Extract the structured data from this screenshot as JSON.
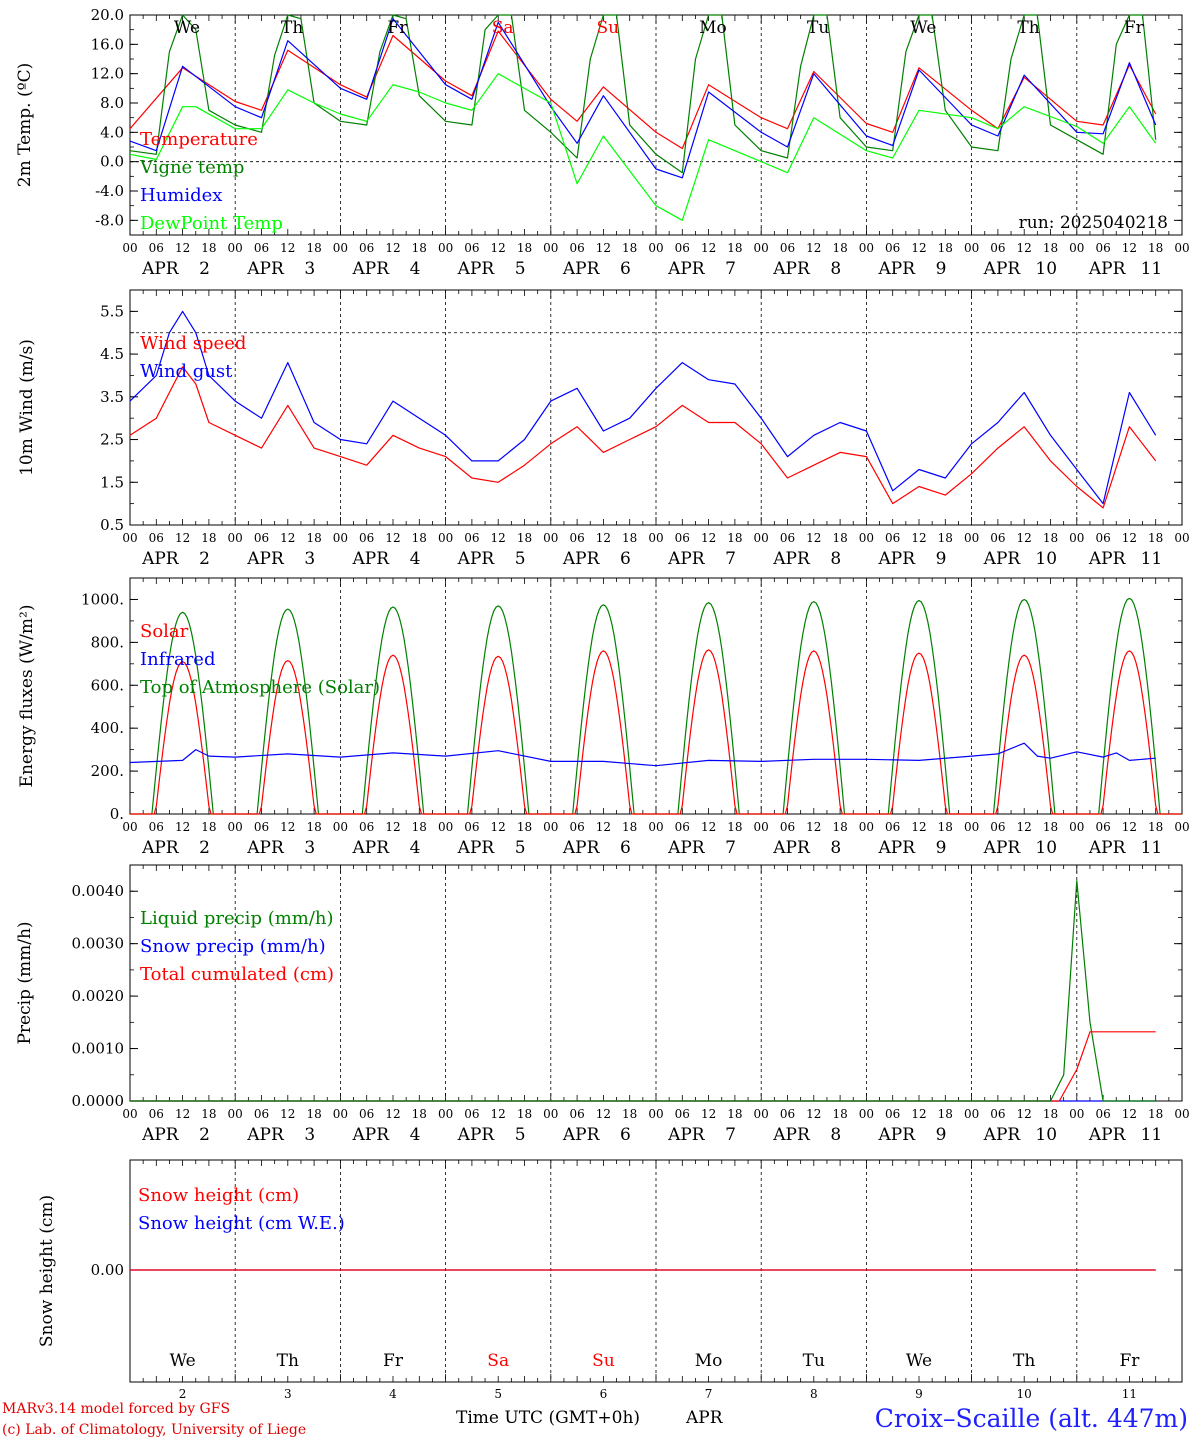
{
  "chart_data": [
    {
      "type": "line",
      "ylabel": "2m Temp. (ºC)",
      "ylim": [
        -10,
        20
      ],
      "y_ticks": [
        "20.0",
        "16.0",
        "12.0",
        "8.0",
        "4.0",
        "0.0",
        "-4.0",
        "-8.0"
      ],
      "reference_line": 0,
      "grid": "vertical dashed day separators",
      "run_label": "run: 2025040218",
      "legend_placement": "left",
      "series": [
        {
          "name": "Temperature",
          "color": "#ff0000",
          "hours": [
            0,
            12,
            24,
            30,
            36,
            48,
            54,
            60,
            72,
            78,
            84,
            96,
            102,
            108,
            120,
            126,
            132,
            144,
            150,
            156,
            168,
            174,
            180,
            192,
            198,
            204,
            216,
            222,
            228,
            234
          ],
          "values": [
            4.5,
            12.8,
            8.2,
            7.0,
            15.2,
            10.5,
            8.8,
            17.2,
            11.0,
            9.0,
            17.8,
            8.5,
            5.5,
            10.2,
            4.0,
            1.8,
            10.5,
            6.0,
            4.5,
            12.3,
            5.2,
            4.0,
            12.8,
            7.0,
            4.5,
            11.5,
            5.5,
            5.0,
            13.2,
            6.5
          ]
        },
        {
          "name": "Vigne temp",
          "color": "#008000",
          "hours": [
            0,
            6,
            9,
            12,
            15,
            18,
            24,
            30,
            33,
            36,
            39,
            42,
            48,
            54,
            57,
            60,
            63,
            66,
            72,
            78,
            81,
            84,
            87,
            90,
            96,
            102,
            105,
            108,
            111,
            114,
            120,
            126,
            129,
            132,
            135,
            138,
            144,
            150,
            153,
            156,
            159,
            162,
            168,
            174,
            177,
            180,
            183,
            186,
            192,
            198,
            201,
            204,
            207,
            210,
            216,
            222,
            225,
            228,
            231,
            234
          ],
          "values": [
            1.5,
            1.0,
            15.0,
            20.0,
            18.0,
            7.0,
            5.0,
            4.0,
            14.5,
            20.0,
            19.5,
            8.0,
            5.5,
            5.0,
            15.0,
            20.0,
            19.5,
            9.0,
            5.5,
            5.0,
            18.0,
            20.0,
            20.0,
            7.0,
            4.0,
            0.5,
            14.0,
            20.0,
            20.0,
            5.0,
            1.0,
            -1.5,
            14.0,
            20.0,
            20.0,
            5.0,
            1.5,
            0.5,
            13.0,
            20.0,
            20.0,
            6.0,
            2.0,
            1.5,
            15.0,
            20.0,
            20.0,
            7.0,
            2.0,
            1.5,
            14.0,
            20.0,
            20.0,
            5.0,
            3.0,
            1.0,
            16.0,
            20.0,
            20.0,
            3.0
          ]
        },
        {
          "name": "Humidex",
          "color": "#0000ff",
          "hours": [
            0,
            6,
            12,
            24,
            30,
            36,
            48,
            54,
            60,
            72,
            78,
            84,
            96,
            102,
            108,
            120,
            126,
            132,
            144,
            150,
            156,
            168,
            174,
            180,
            192,
            198,
            204,
            216,
            222,
            228,
            234
          ],
          "values": [
            2.8,
            1.5,
            13.0,
            7.5,
            6.0,
            16.5,
            10.0,
            8.5,
            19.5,
            10.5,
            8.5,
            19.0,
            7.5,
            2.5,
            9.0,
            -1.0,
            -2.2,
            9.5,
            4.0,
            2.0,
            12.0,
            3.5,
            2.2,
            12.5,
            5.0,
            3.5,
            11.8,
            4.0,
            3.8,
            13.5,
            5.0
          ]
        },
        {
          "name": "DewPoint Temp",
          "color": "#00ff00",
          "hours": [
            0,
            6,
            12,
            15,
            24,
            30,
            36,
            42,
            48,
            54,
            60,
            66,
            72,
            78,
            84,
            96,
            102,
            108,
            120,
            126,
            132,
            144,
            150,
            156,
            168,
            174,
            180,
            192,
            198,
            204,
            216,
            222,
            228,
            234
          ],
          "values": [
            1.0,
            0.3,
            7.5,
            7.5,
            4.5,
            4.5,
            9.8,
            8.0,
            6.5,
            5.5,
            10.5,
            9.5,
            8.0,
            7.0,
            12.0,
            8.0,
            -3.0,
            3.5,
            -6.0,
            -8.0,
            3.0,
            0.0,
            -1.5,
            6.0,
            1.5,
            0.5,
            7.0,
            6.0,
            4.5,
            7.5,
            4.8,
            2.5,
            7.5,
            2.5
          ]
        }
      ]
    },
    {
      "type": "line",
      "ylabel": "10m Wind (m/s)",
      "ylim": [
        0.5,
        6.0
      ],
      "y_ticks": [
        "5.5",
        "4.5",
        "3.5",
        "2.5",
        "1.5",
        "0.5"
      ],
      "reference_line": 5.0,
      "grid": "vertical dashed day separators",
      "legend_placement": "left",
      "series": [
        {
          "name": "Wind speed",
          "color": "#ff0000",
          "hours": [
            0,
            6,
            9,
            12,
            15,
            18,
            24,
            30,
            36,
            42,
            48,
            54,
            60,
            66,
            72,
            78,
            84,
            90,
            96,
            102,
            108,
            114,
            120,
            126,
            132,
            138,
            144,
            150,
            156,
            162,
            168,
            174,
            180,
            186,
            192,
            198,
            204,
            210,
            216,
            222,
            228,
            234
          ],
          "values": [
            2.6,
            3.0,
            3.6,
            4.2,
            3.8,
            2.9,
            2.6,
            2.3,
            3.3,
            2.3,
            2.1,
            1.9,
            2.6,
            2.3,
            2.1,
            1.6,
            1.5,
            1.9,
            2.4,
            2.8,
            2.2,
            2.5,
            2.8,
            3.3,
            2.9,
            2.9,
            2.4,
            1.6,
            1.9,
            2.2,
            2.1,
            1.0,
            1.4,
            1.2,
            1.7,
            2.3,
            2.8,
            2.0,
            1.4,
            0.9,
            2.8,
            2.0
          ]
        },
        {
          "name": "Wind gust",
          "color": "#0000ff",
          "hours": [
            0,
            6,
            9,
            12,
            15,
            18,
            24,
            30,
            36,
            42,
            48,
            54,
            60,
            66,
            72,
            78,
            84,
            90,
            96,
            102,
            108,
            114,
            120,
            126,
            132,
            138,
            144,
            150,
            156,
            162,
            168,
            174,
            180,
            186,
            192,
            198,
            204,
            210,
            216,
            222,
            228,
            234
          ],
          "values": [
            3.4,
            4.0,
            5.0,
            5.5,
            5.0,
            4.0,
            3.4,
            3.0,
            4.3,
            2.9,
            2.5,
            2.4,
            3.4,
            3.0,
            2.6,
            2.0,
            2.0,
            2.5,
            3.4,
            3.7,
            2.7,
            3.0,
            3.7,
            4.3,
            3.9,
            3.8,
            3.0,
            2.1,
            2.6,
            2.9,
            2.7,
            1.3,
            1.8,
            1.6,
            2.4,
            2.9,
            3.6,
            2.6,
            1.8,
            1.0,
            3.6,
            2.6
          ]
        }
      ]
    },
    {
      "type": "line",
      "ylabel": "Energy fluxes (W/m²)",
      "ylim": [
        0,
        1100
      ],
      "y_ticks": [
        "1000.",
        "800.",
        "600.",
        "400.",
        "200.",
        "0."
      ],
      "grid": "vertical dashed day separators",
      "legend_placement": "left",
      "series": [
        {
          "name": "Solar",
          "color": "#ff0000",
          "daily_peaks": [
            710,
            715,
            740,
            735,
            760,
            765,
            760,
            750,
            740,
            760
          ]
        },
        {
          "name": "Infrared",
          "color": "#0000ff",
          "hours": [
            0,
            12,
            15,
            18,
            24,
            36,
            48,
            60,
            72,
            84,
            96,
            108,
            120,
            132,
            144,
            156,
            168,
            180,
            192,
            198,
            204,
            207,
            210,
            216,
            222,
            225,
            228,
            234
          ],
          "values": [
            240,
            250,
            300,
            270,
            265,
            280,
            265,
            285,
            270,
            295,
            245,
            245,
            225,
            250,
            245,
            255,
            255,
            250,
            270,
            280,
            330,
            270,
            260,
            290,
            265,
            285,
            250,
            260
          ]
        },
        {
          "name": "Top of Atmosphere (Solar)",
          "color": "#008000",
          "daily_peaks": [
            940,
            955,
            965,
            970,
            975,
            985,
            990,
            995,
            1000,
            1005
          ]
        }
      ]
    },
    {
      "type": "line",
      "ylabel": "Precip (mm/h)",
      "ylim": [
        0,
        0.0045
      ],
      "y_ticks": [
        "0.0040",
        "0.0030",
        "0.0020",
        "0.0010",
        "0.0000"
      ],
      "grid": "vertical dashed day separators",
      "legend_placement": "left",
      "series": [
        {
          "name": "Liquid precip (mm/h)",
          "color": "#008000",
          "hours": [
            0,
            210,
            213,
            216,
            219,
            222,
            234
          ],
          "values": [
            0,
            0,
            0.0005,
            0.0042,
            0.0015,
            0,
            0
          ]
        },
        {
          "name": "Snow precip (mm/h)",
          "color": "#0000ff",
          "hours": [
            0,
            234
          ],
          "values": [
            0,
            0
          ]
        },
        {
          "name": "Total cumulated (cm)",
          "color": "#ff0000",
          "hours": [
            0,
            212,
            216,
            219,
            234
          ],
          "values": [
            0,
            0,
            0.0006,
            0.00132,
            0.00132
          ]
        }
      ]
    },
    {
      "type": "line",
      "ylabel": "Snow height (cm)",
      "y_ticks": [
        "0.00"
      ],
      "grid": "vertical dashed day separators",
      "legend_placement": "left",
      "series": [
        {
          "name": "Snow height (cm)",
          "color": "#ff0000",
          "hours": [
            0,
            234
          ],
          "values": [
            0,
            0
          ]
        },
        {
          "name": "Snow height (cm W.E.)",
          "color": "#0000ff",
          "hours": [
            0,
            234
          ],
          "values": [
            0,
            0
          ]
        }
      ]
    }
  ],
  "time_axis": {
    "hour_ticks": [
      "00",
      "06",
      "12",
      "18"
    ],
    "last_hour_tick": "00",
    "month": "APR",
    "dates": [
      "2",
      "3",
      "4",
      "5",
      "6",
      "7",
      "8",
      "9",
      "10",
      "11"
    ],
    "days": [
      "We",
      "Th",
      "Fr",
      "Sa",
      "Su",
      "Mo",
      "Tu",
      "We",
      "Th",
      "Fr"
    ],
    "weekend_color": "#ff0000",
    "weekday_color": "#000000",
    "weekend_indexes": [
      3,
      4
    ]
  },
  "footer": {
    "model_credit": "MARv3.14 model forced by GFS",
    "lab_credit": "(c) Lab. of Climatology, University of Liege",
    "time_caption": "Time UTC (GMT+0h)",
    "month": "APR",
    "station": "Croix–Scaille (alt. 447m)"
  }
}
